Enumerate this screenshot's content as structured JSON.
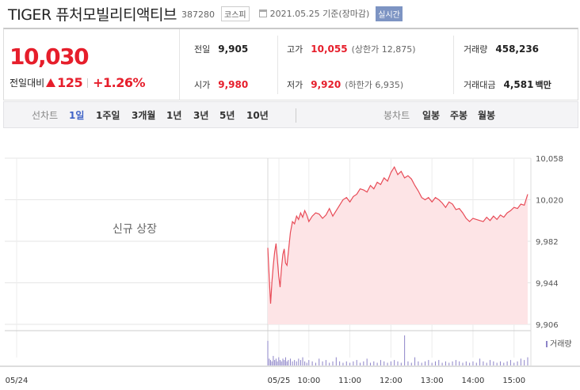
{
  "header": {
    "name": "TIGER 퓨처모빌리티액티브",
    "code": "387280",
    "market_badge": "코스피",
    "date": "2021.05.25 기준(장마감)",
    "realtime_badge": "실시간"
  },
  "quote": {
    "price": "10,030",
    "change_label": "전일대비",
    "change_amount": "125",
    "change_percent": "+1.26%",
    "prev_close_label": "전일",
    "prev_close": "9,905",
    "open_label": "시가",
    "open": "9,980",
    "high_label": "고가",
    "high": "10,055",
    "upper_limit": "(상한가 12,875)",
    "low_label": "저가",
    "low": "9,920",
    "lower_limit": "(하한가 6,935)",
    "volume_label": "거래량",
    "volume": "458,236",
    "value_label": "거래대금",
    "value": "4,581",
    "value_unit": "백만",
    "up_color": "#e61e2b"
  },
  "tabs": {
    "line_label": "선차트",
    "line_items": [
      "1일",
      "1주일",
      "3개월",
      "1년",
      "3년",
      "5년",
      "10년"
    ],
    "active": "1일",
    "candle_label": "봉차트",
    "candle_items": [
      "일봉",
      "주봉",
      "월봉"
    ]
  },
  "chart_data": {
    "type": "area",
    "note": "신규 상장",
    "y_ticks": [
      "10,058",
      "10,020",
      "9,982",
      "9,944",
      "9,906"
    ],
    "ylim": [
      9906,
      10058
    ],
    "x_ticks": [
      "05/24",
      "05/25",
      "10:00",
      "11:00",
      "12:00",
      "13:00",
      "14:00",
      "15:00"
    ],
    "volume_legend": "거래량",
    "line_color": "#e84b57",
    "fill_color": "#fde4e6",
    "volume_color": "#8d84c8",
    "series": [
      {
        "x": [
          "09:00",
          "09:02",
          "09:04",
          "09:06",
          "09:08",
          "09:10",
          "09:12",
          "09:14",
          "09:16",
          "09:18",
          "09:20",
          "09:22",
          "09:24",
          "09:26",
          "09:28",
          "09:30",
          "09:33",
          "09:36",
          "09:39",
          "09:42",
          "09:45",
          "09:48",
          "09:51",
          "09:54",
          "09:57",
          "10:00",
          "10:05",
          "10:10",
          "10:15",
          "10:20",
          "10:25",
          "10:30",
          "10:35",
          "10:40",
          "10:45",
          "10:50",
          "10:55",
          "11:00",
          "11:05",
          "11:10",
          "11:15",
          "11:20",
          "11:25",
          "11:30",
          "11:35",
          "11:40",
          "11:45",
          "11:50",
          "11:55",
          "12:00",
          "12:05",
          "12:10",
          "12:15",
          "12:20",
          "12:25",
          "12:30",
          "12:35",
          "12:40",
          "12:45",
          "12:50",
          "12:55",
          "13:00",
          "13:05",
          "13:10",
          "13:15",
          "13:20",
          "13:25",
          "13:30",
          "13:35",
          "13:40",
          "13:45",
          "13:50",
          "13:55",
          "14:00",
          "14:05",
          "14:10",
          "14:15",
          "14:20",
          "14:25",
          "14:30",
          "14:35",
          "14:40",
          "14:45",
          "14:50",
          "14:55",
          "15:00",
          "15:05",
          "15:10",
          "15:15",
          "15:20"
        ],
        "values": [
          9976,
          9950,
          9925,
          9945,
          9960,
          9972,
          9980,
          9965,
          9950,
          9940,
          9958,
          9970,
          9975,
          9962,
          9960,
          9972,
          9990,
          10000,
          9998,
          10005,
          10002,
          10008,
          10004,
          10010,
          10006,
          10000,
          10005,
          10008,
          10007,
          10003,
          10006,
          10012,
          10005,
          10010,
          10015,
          10020,
          10022,
          10018,
          10023,
          10025,
          10030,
          10029,
          10027,
          10033,
          10030,
          10036,
          10034,
          10040,
          10037,
          10045,
          10050,
          10043,
          10046,
          10040,
          10042,
          10039,
          10033,
          10028,
          10022,
          10020,
          10022,
          10018,
          10022,
          10020,
          10017,
          10013,
          10018,
          10016,
          10011,
          10012,
          10008,
          10003,
          10000,
          10003,
          10002,
          10001,
          10000,
          10004,
          10001,
          10005,
          10002,
          10006,
          10004,
          10008,
          10010,
          10013,
          10012,
          10016,
          10015,
          10025
        ]
      }
    ],
    "volume": [
      18,
      5,
      4,
      3,
      7,
      4,
      5,
      3,
      6,
      4,
      3,
      5,
      4,
      6,
      3,
      4,
      5,
      3,
      4,
      3,
      5,
      4,
      6,
      3,
      2,
      4,
      3,
      2,
      5,
      3,
      4,
      2,
      3,
      6,
      3,
      2,
      3,
      2,
      3,
      4,
      2,
      3,
      5,
      2,
      3,
      2,
      4,
      3,
      2,
      3,
      4,
      3,
      2,
      22,
      3,
      2,
      6,
      3,
      2,
      3,
      4,
      2,
      3,
      4,
      2,
      3,
      2,
      3,
      4,
      3,
      2,
      3,
      2,
      3,
      2,
      5,
      3,
      2,
      4,
      3,
      2,
      3,
      2,
      3,
      4,
      2,
      3,
      5,
      4,
      6
    ]
  }
}
